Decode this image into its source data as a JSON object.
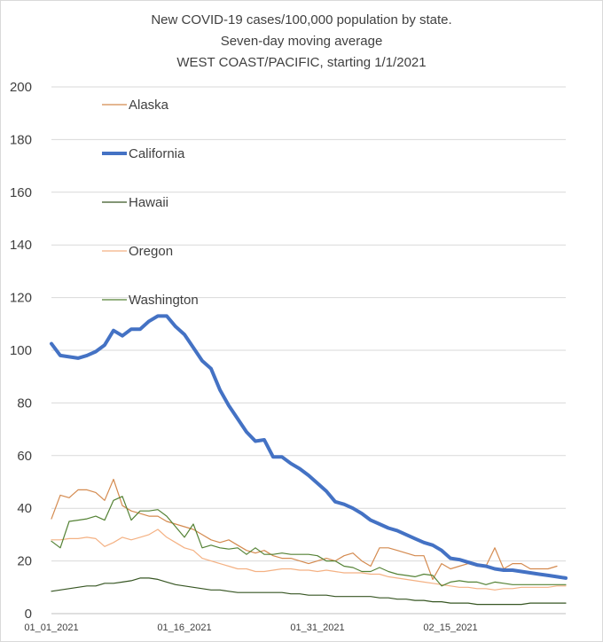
{
  "chart_data": {
    "type": "line",
    "title_lines": [
      "New COVID-19 cases/100,000 population by state.",
      "Seven-day moving average",
      "WEST COAST/PACIFIC, starting 1/1/2021"
    ],
    "ylim": [
      0,
      200
    ],
    "y_ticks": [
      "0",
      "20",
      "40",
      "60",
      "80",
      "100",
      "120",
      "140",
      "160",
      "180",
      "200"
    ],
    "x_start": "2021-01-01",
    "x_ticks": [
      {
        "date": "2021-01-01",
        "label": "01_01_2021"
      },
      {
        "date": "2021-01-16",
        "label": "01_16_2021"
      },
      {
        "date": "2021-01-31",
        "label": "01_31_2021"
      },
      {
        "date": "2021-02-15",
        "label": "02_15_2021"
      }
    ],
    "grid": true,
    "legend_position": "top-left",
    "series": [
      {
        "name": "Alaska",
        "color": "#d48a4f",
        "width": 1.2,
        "values": [
          36,
          45,
          44,
          47,
          47,
          46,
          43,
          51,
          41,
          39,
          38,
          37,
          37,
          35,
          34,
          33,
          32,
          30,
          28,
          27,
          28,
          26,
          24,
          23,
          24,
          22,
          21,
          21,
          20,
          19,
          20,
          21,
          20,
          22,
          23,
          20,
          18,
          25,
          25,
          24,
          23,
          22,
          22,
          13,
          19,
          17,
          18,
          19,
          18,
          18,
          25,
          17,
          19,
          19,
          17,
          17,
          17,
          18
        ]
      },
      {
        "name": "California",
        "color": "#4472c4",
        "width": 4,
        "values": [
          102.5,
          98,
          97.5,
          97,
          98,
          99.5,
          102,
          107.5,
          105.5,
          108,
          108,
          111,
          113,
          113,
          109,
          106,
          101,
          96,
          93,
          85,
          79,
          74,
          69,
          65.5,
          66,
          59.5,
          59.5,
          57,
          55,
          52.5,
          49.5,
          46.5,
          42.5,
          41.5,
          40,
          38,
          35.5,
          34,
          32.5,
          31.5,
          30,
          28.5,
          27,
          26,
          24,
          21,
          20.5,
          19.5,
          18.5,
          18,
          17,
          16.5,
          16.5,
          16,
          15.5,
          15,
          14.5,
          14,
          13.5
        ]
      },
      {
        "name": "Hawaii",
        "color": "#375623",
        "width": 1.2,
        "values": [
          8.5,
          9,
          9.5,
          10,
          10.5,
          10.5,
          11.5,
          11.5,
          12,
          12.5,
          13.5,
          13.5,
          13,
          12,
          11,
          10.5,
          10,
          9.5,
          9,
          9,
          8.5,
          8,
          8,
          8,
          8,
          8,
          8,
          7.5,
          7.5,
          7,
          7,
          7,
          6.5,
          6.5,
          6.5,
          6.5,
          6.5,
          6,
          6,
          5.5,
          5.5,
          5,
          5,
          4.5,
          4.5,
          4,
          4,
          4,
          3.5,
          3.5,
          3.5,
          3.5,
          3.5,
          3.5,
          4,
          4,
          4,
          4,
          4
        ]
      },
      {
        "name": "Oregon",
        "color": "#f4b183",
        "width": 1.2,
        "values": [
          28,
          28,
          28.5,
          28.5,
          29,
          28.5,
          25.5,
          27,
          29,
          28,
          29,
          30,
          32,
          29,
          27,
          25,
          24,
          21,
          20,
          19,
          18,
          17,
          17,
          16,
          16,
          16.5,
          17,
          17,
          16.5,
          16.5,
          16,
          16.5,
          16,
          15.5,
          15.5,
          15.5,
          15,
          15,
          14,
          13.5,
          13,
          12.5,
          12,
          11.5,
          11,
          10.5,
          10,
          10,
          9.5,
          9.5,
          9,
          9.5,
          9.5,
          10,
          10,
          10,
          10,
          10.5,
          10.5
        ]
      },
      {
        "name": "Washington",
        "color": "#548235",
        "width": 1.2,
        "values": [
          27.5,
          25,
          35,
          35.5,
          36,
          37,
          35.5,
          43,
          44.5,
          35.5,
          39,
          39,
          39.5,
          37,
          33,
          29,
          34,
          25,
          26,
          25,
          24.5,
          25,
          22.5,
          25,
          22.5,
          22.5,
          23,
          22.5,
          22.5,
          22.5,
          22,
          20,
          20,
          18,
          17.5,
          16,
          16,
          17.5,
          16,
          15,
          14.5,
          14,
          15,
          14.5,
          10.5,
          12,
          12.5,
          12,
          12,
          11,
          12,
          11.5,
          11,
          11,
          11,
          11,
          11,
          11,
          11
        ]
      }
    ]
  }
}
